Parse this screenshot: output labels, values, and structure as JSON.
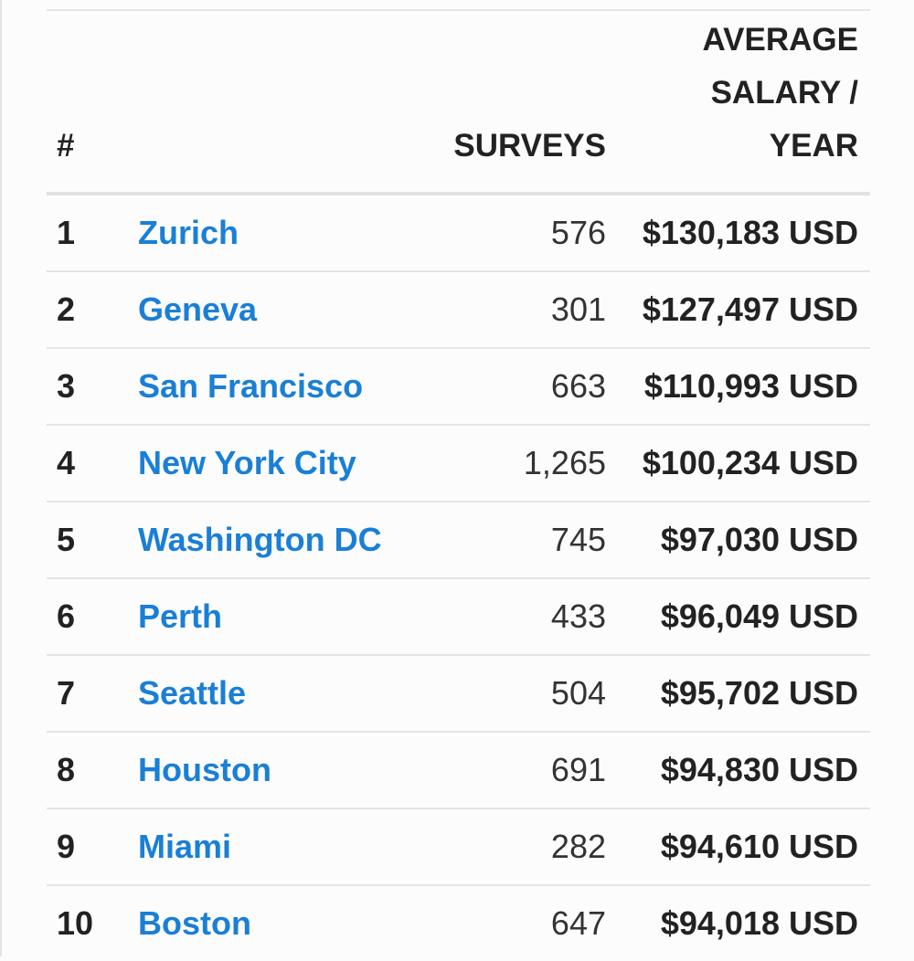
{
  "table": {
    "headers": {
      "rank": "#",
      "city": "",
      "surveys": "SURVEYS",
      "salary_line1": "AVERAGE",
      "salary_line2": "SALARY /",
      "salary_line3": "YEAR"
    },
    "rows": [
      {
        "rank": "1",
        "city": "Zurich",
        "surveys": "576",
        "salary": "$130,183 USD"
      },
      {
        "rank": "2",
        "city": "Geneva",
        "surveys": "301",
        "salary": "$127,497 USD"
      },
      {
        "rank": "3",
        "city": "San Francisco",
        "surveys": "663",
        "salary": "$110,993 USD"
      },
      {
        "rank": "4",
        "city": "New York City",
        "surveys": "1,265",
        "salary": "$100,234 USD"
      },
      {
        "rank": "5",
        "city": "Washington DC",
        "surveys": "745",
        "salary": "$97,030 USD"
      },
      {
        "rank": "6",
        "city": "Perth",
        "surveys": "433",
        "salary": "$96,049 USD"
      },
      {
        "rank": "7",
        "city": "Seattle",
        "surveys": "504",
        "salary": "$95,702 USD"
      },
      {
        "rank": "8",
        "city": "Houston",
        "surveys": "691",
        "salary": "$94,830 USD"
      },
      {
        "rank": "9",
        "city": "Miami",
        "surveys": "282",
        "salary": "$94,610 USD"
      },
      {
        "rank": "10",
        "city": "Boston",
        "surveys": "647",
        "salary": "$94,018 USD"
      }
    ]
  },
  "colors": {
    "link": "#1a7fd6",
    "text": "#222222",
    "divider": "#e4e4e4",
    "background": "#fcfcfc"
  }
}
